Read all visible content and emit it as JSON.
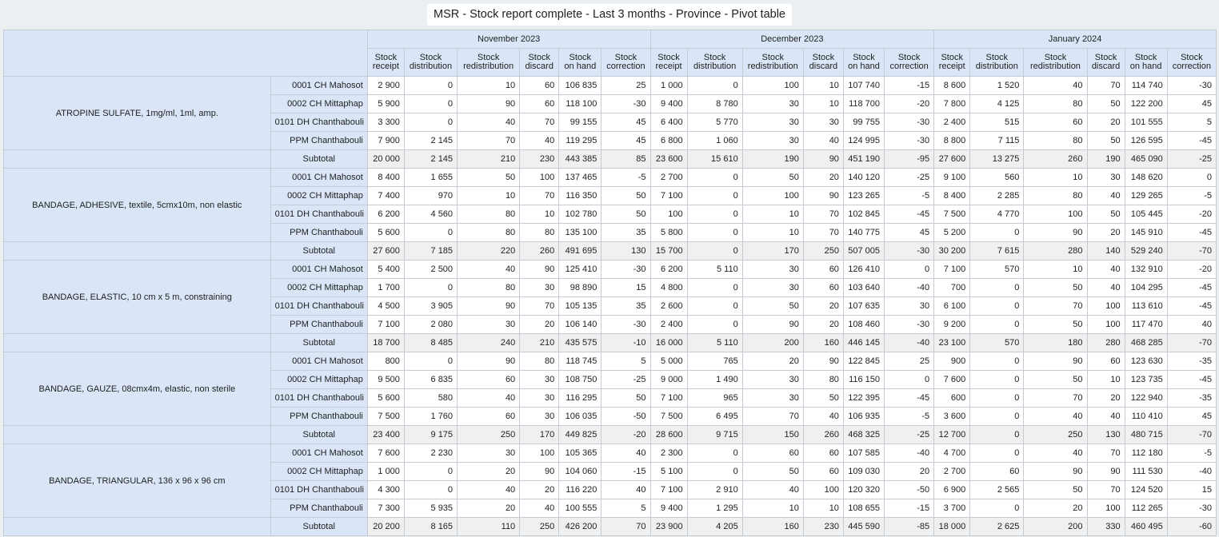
{
  "report": {
    "title": "MSR - Stock report complete - Last 3 months - Province - Pivot table"
  },
  "periods": [
    "November 2023",
    "December 2023",
    "January 2024"
  ],
  "columns": [
    [
      "Stock",
      "receipt"
    ],
    [
      "Stock",
      "distribution"
    ],
    [
      "Stock",
      "redistribution"
    ],
    [
      "Stock",
      "discard"
    ],
    [
      "Stock",
      "on hand"
    ],
    [
      "Stock",
      "correction"
    ]
  ],
  "subtotal_label": "Subtotal",
  "groups": [
    {
      "item": "ATROPINE SULFATE, 1mg/ml, 1ml, amp.",
      "rows": [
        {
          "ou": "0001 CH Mahosot",
          "values": [
            "2 900",
            "0",
            "10",
            "60",
            "106 835",
            "25",
            "1 000",
            "0",
            "100",
            "10",
            "107 740",
            "-15",
            "8 600",
            "1 520",
            "40",
            "70",
            "114 740",
            "-30"
          ]
        },
        {
          "ou": "0002 CH Mittaphap",
          "values": [
            "5 900",
            "0",
            "90",
            "60",
            "118 100",
            "-30",
            "9 400",
            "8 780",
            "30",
            "10",
            "118 700",
            "-20",
            "7 800",
            "4 125",
            "80",
            "50",
            "122 200",
            "45"
          ]
        },
        {
          "ou": "0101 DH Chanthabouli",
          "values": [
            "3 300",
            "0",
            "40",
            "70",
            "99 155",
            "45",
            "6 400",
            "5 770",
            "30",
            "30",
            "99 755",
            "-30",
            "2 400",
            "515",
            "60",
            "20",
            "101 555",
            "5"
          ]
        },
        {
          "ou": "PPM Chanthabouli",
          "values": [
            "7 900",
            "2 145",
            "70",
            "40",
            "119 295",
            "45",
            "6 800",
            "1 060",
            "30",
            "40",
            "124 995",
            "-30",
            "8 800",
            "7 115",
            "80",
            "50",
            "126 595",
            "-45"
          ]
        }
      ],
      "subtotal": [
        "20 000",
        "2 145",
        "210",
        "230",
        "443 385",
        "85",
        "23 600",
        "15 610",
        "190",
        "90",
        "451 190",
        "-95",
        "27 600",
        "13 275",
        "260",
        "190",
        "465 090",
        "-25"
      ]
    },
    {
      "item": "BANDAGE, ADHESIVE, textile, 5cmx10m, non elastic",
      "rows": [
        {
          "ou": "0001 CH Mahosot",
          "values": [
            "8 400",
            "1 655",
            "50",
            "100",
            "137 465",
            "-5",
            "2 700",
            "0",
            "50",
            "20",
            "140 120",
            "-25",
            "9 100",
            "560",
            "10",
            "30",
            "148 620",
            "0"
          ]
        },
        {
          "ou": "0002 CH Mittaphap",
          "values": [
            "7 400",
            "970",
            "10",
            "70",
            "116 350",
            "50",
            "7 100",
            "0",
            "100",
            "90",
            "123 265",
            "-5",
            "8 400",
            "2 285",
            "80",
            "40",
            "129 265",
            "-5"
          ]
        },
        {
          "ou": "0101 DH Chanthabouli",
          "values": [
            "6 200",
            "4 560",
            "80",
            "10",
            "102 780",
            "50",
            "100",
            "0",
            "10",
            "70",
            "102 845",
            "-45",
            "7 500",
            "4 770",
            "100",
            "50",
            "105 445",
            "-20"
          ]
        },
        {
          "ou": "PPM Chanthabouli",
          "values": [
            "5 600",
            "0",
            "80",
            "80",
            "135 100",
            "35",
            "5 800",
            "0",
            "10",
            "70",
            "140 775",
            "45",
            "5 200",
            "0",
            "90",
            "20",
            "145 910",
            "-45"
          ]
        }
      ],
      "subtotal": [
        "27 600",
        "7 185",
        "220",
        "260",
        "491 695",
        "130",
        "15 700",
        "0",
        "170",
        "250",
        "507 005",
        "-30",
        "30 200",
        "7 615",
        "280",
        "140",
        "529 240",
        "-70"
      ]
    },
    {
      "item": "BANDAGE, ELASTIC, 10 cm x 5 m, constraining",
      "rows": [
        {
          "ou": "0001 CH Mahosot",
          "values": [
            "5 400",
            "2 500",
            "40",
            "90",
            "125 410",
            "-30",
            "6 200",
            "5 110",
            "30",
            "60",
            "126 410",
            "0",
            "7 100",
            "570",
            "10",
            "40",
            "132 910",
            "-20"
          ]
        },
        {
          "ou": "0002 CH Mittaphap",
          "values": [
            "1 700",
            "0",
            "80",
            "30",
            "98 890",
            "15",
            "4 800",
            "0",
            "30",
            "60",
            "103 640",
            "-40",
            "700",
            "0",
            "50",
            "40",
            "104 295",
            "-45"
          ]
        },
        {
          "ou": "0101 DH Chanthabouli",
          "values": [
            "4 500",
            "3 905",
            "90",
            "70",
            "105 135",
            "35",
            "2 600",
            "0",
            "50",
            "20",
            "107 635",
            "30",
            "6 100",
            "0",
            "70",
            "100",
            "113 610",
            "-45"
          ]
        },
        {
          "ou": "PPM Chanthabouli",
          "values": [
            "7 100",
            "2 080",
            "30",
            "20",
            "106 140",
            "-30",
            "2 400",
            "0",
            "90",
            "20",
            "108 460",
            "-30",
            "9 200",
            "0",
            "50",
            "100",
            "117 470",
            "40"
          ]
        }
      ],
      "subtotal": [
        "18 700",
        "8 485",
        "240",
        "210",
        "435 575",
        "-10",
        "16 000",
        "5 110",
        "200",
        "160",
        "446 145",
        "-40",
        "23 100",
        "570",
        "180",
        "280",
        "468 285",
        "-70"
      ]
    },
    {
      "item": "BANDAGE, GAUZE, 08cmx4m, elastic, non sterile",
      "rows": [
        {
          "ou": "0001 CH Mahosot",
          "values": [
            "800",
            "0",
            "90",
            "80",
            "118 745",
            "5",
            "5 000",
            "765",
            "20",
            "90",
            "122 845",
            "25",
            "900",
            "0",
            "90",
            "60",
            "123 630",
            "-35"
          ]
        },
        {
          "ou": "0002 CH Mittaphap",
          "values": [
            "9 500",
            "6 835",
            "60",
            "30",
            "108 750",
            "-25",
            "9 000",
            "1 490",
            "30",
            "80",
            "116 150",
            "0",
            "7 600",
            "0",
            "50",
            "10",
            "123 735",
            "-45"
          ]
        },
        {
          "ou": "0101 DH Chanthabouli",
          "values": [
            "5 600",
            "580",
            "40",
            "30",
            "116 295",
            "50",
            "7 100",
            "965",
            "30",
            "50",
            "122 395",
            "-45",
            "600",
            "0",
            "70",
            "20",
            "122 940",
            "-35"
          ]
        },
        {
          "ou": "PPM Chanthabouli",
          "values": [
            "7 500",
            "1 760",
            "60",
            "30",
            "106 035",
            "-50",
            "7 500",
            "6 495",
            "70",
            "40",
            "106 935",
            "-5",
            "3 600",
            "0",
            "40",
            "40",
            "110 410",
            "45"
          ]
        }
      ],
      "subtotal": [
        "23 400",
        "9 175",
        "250",
        "170",
        "449 825",
        "-20",
        "28 600",
        "9 715",
        "150",
        "260",
        "468 325",
        "-25",
        "12 700",
        "0",
        "250",
        "130",
        "480 715",
        "-70"
      ]
    },
    {
      "item": "BANDAGE, TRIANGULAR, 136 x 96 x 96 cm",
      "rows": [
        {
          "ou": "0001 CH Mahosot",
          "values": [
            "7 600",
            "2 230",
            "30",
            "100",
            "105 365",
            "40",
            "2 300",
            "0",
            "60",
            "60",
            "107 585",
            "-40",
            "4 700",
            "0",
            "40",
            "70",
            "112 180",
            "-5"
          ]
        },
        {
          "ou": "0002 CH Mittaphap",
          "values": [
            "1 000",
            "0",
            "20",
            "90",
            "104 060",
            "-15",
            "5 100",
            "0",
            "50",
            "60",
            "109 030",
            "20",
            "2 700",
            "60",
            "90",
            "90",
            "111 530",
            "-40"
          ]
        },
        {
          "ou": "0101 DH Chanthabouli",
          "values": [
            "4 300",
            "0",
            "40",
            "20",
            "116 220",
            "40",
            "7 100",
            "2 910",
            "40",
            "100",
            "120 320",
            "-50",
            "6 900",
            "2 565",
            "50",
            "70",
            "124 520",
            "15"
          ]
        },
        {
          "ou": "PPM Chanthabouli",
          "values": [
            "7 300",
            "5 935",
            "20",
            "40",
            "100 555",
            "5",
            "9 400",
            "1 295",
            "10",
            "10",
            "108 655",
            "-15",
            "3 700",
            "0",
            "20",
            "100",
            "112 265",
            "-30"
          ]
        }
      ],
      "subtotal": [
        "20 200",
        "8 165",
        "110",
        "250",
        "426 200",
        "70",
        "23 900",
        "4 205",
        "160",
        "230",
        "445 590",
        "-85",
        "18 000",
        "2 625",
        "200",
        "330",
        "460 495",
        "-60"
      ]
    }
  ]
}
